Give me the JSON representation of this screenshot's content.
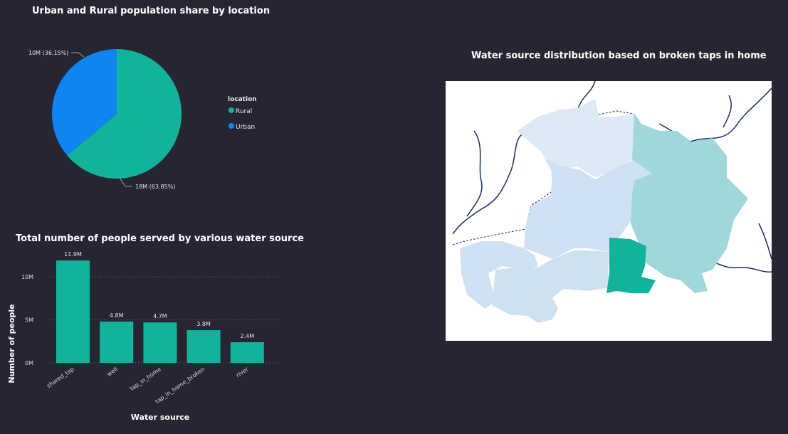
{
  "pie_section": {
    "title": "Urban and Rural population share by location"
  },
  "bar_section": {
    "title": "Total number of people served by various water source"
  },
  "map_section": {
    "title": "Water source distribution based on broken taps in home"
  },
  "colors": {
    "rural": "#12b39a",
    "urban": "#0f84f2",
    "bar": "#12b39a",
    "map_light": "#cfe1f2",
    "map_lightest": "#dde9f5",
    "map_teal_light": "#9fd7da",
    "map_highlight": "#12b39a",
    "river": "#1a2f5a"
  },
  "chart_data": [
    {
      "type": "pie",
      "title": "Urban and Rural population share by location",
      "legend_title": "location",
      "legend_placement": "right",
      "slices": [
        {
          "name": "Rural",
          "value": 18,
          "percent": 63.85,
          "label": "18M (63.85%)"
        },
        {
          "name": "Urban",
          "value": 10,
          "percent": 36.15,
          "label": "10M (36.15%)"
        }
      ]
    },
    {
      "type": "bar",
      "title": "Total number of people served by various water source",
      "xlabel": "Water source",
      "ylabel": "Number of people",
      "categories": [
        "shared_tap",
        "well",
        "tap_in_home",
        "tap_in_home_broken",
        "river"
      ],
      "values": [
        11.9,
        4.8,
        4.7,
        3.8,
        2.4
      ],
      "value_labels": [
        "11.9M",
        "4.8M",
        "4.7M",
        "3.8M",
        "2.4M"
      ],
      "y_ticks": [
        0,
        5,
        10
      ],
      "y_tick_labels": [
        "0M",
        "5M",
        "10M"
      ],
      "ylim": [
        0,
        12
      ],
      "grid": true
    }
  ]
}
